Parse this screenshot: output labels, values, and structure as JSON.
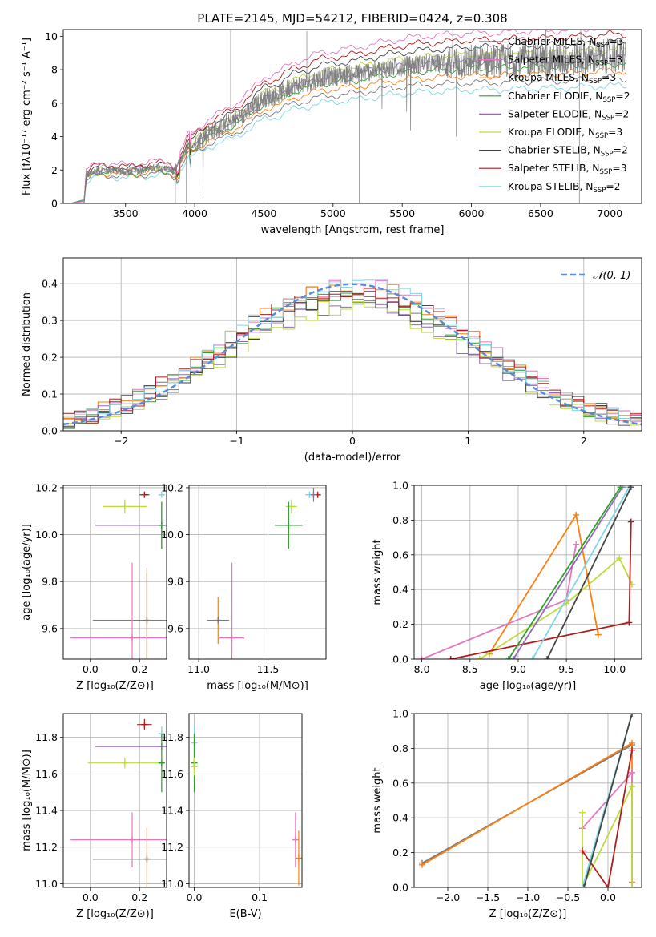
{
  "colors": {
    "grid": "#b0b0b0",
    "axis": "#000000",
    "legend_normal": "#5b8bd6"
  },
  "chart_data": [
    {
      "id": "spectrum",
      "type": "line",
      "title": "PLATE=2145, MJD=54212, FIBERID=0424, z=0.308",
      "xlabel": "wavelength [Angstrom, rest frame]",
      "ylabel": "Flux [fλ10⁻¹⁷ erg cm⁻² s⁻¹ A⁻¹]",
      "xlim": [
        3050,
        7230
      ],
      "ylim": [
        0,
        10.4
      ],
      "xticks": [
        3500,
        4000,
        4500,
        5000,
        5500,
        6000,
        6500,
        7000
      ],
      "yticks": [
        0,
        2,
        4,
        6,
        8,
        10
      ],
      "grid": false,
      "legend_placement": "upper right",
      "legend": [
        {
          "label": "Chabrier MILES, N",
          "sub": "SSP",
          "suffix": "=3",
          "color": "#7a7a7a"
        },
        {
          "label": "Salpeter MILES, N",
          "sub": "SSP",
          "suffix": "=3",
          "color": "#e377c2"
        },
        {
          "label": "Kroupa MILES, N",
          "sub": "SSP",
          "suffix": "=3",
          "color": "#ff7f0e"
        },
        {
          "label": "Chabrier ELODIE, N",
          "sub": "SSP",
          "suffix": "=2",
          "color": "#2ca02c"
        },
        {
          "label": "Salpeter ELODIE, N",
          "sub": "SSP",
          "suffix": "=2",
          "color": "#9467bd"
        },
        {
          "label": "Kroupa ELODIE, N",
          "sub": "SSP",
          "suffix": "=3",
          "color": "#bcdc3a"
        },
        {
          "label": "Chabrier STELIB, N",
          "sub": "SSP",
          "suffix": "=2",
          "color": "#444444"
        },
        {
          "label": "Salpeter STELIB, N",
          "sub": "SSP",
          "suffix": "=3",
          "color": "#b01c1c"
        },
        {
          "label": "Kroupa STELIB, N",
          "sub": "SSP",
          "suffix": "=2",
          "color": "#7fd6e6"
        }
      ],
      "continuum": {
        "x": [
          3200,
          3250,
          3300,
          3400,
          3500,
          3600,
          3700,
          3800,
          3850,
          3900,
          3950,
          4000,
          4100,
          4200,
          4300,
          4400,
          4500,
          4600,
          4700,
          4800,
          4900,
          5000,
          5200,
          5400,
          5600,
          5800,
          6000,
          6200,
          6400,
          6600,
          6800,
          7000,
          7100
        ],
        "y": [
          1.6,
          1.8,
          2.0,
          2.0,
          1.9,
          2.0,
          2.1,
          2.1,
          1.9,
          2.6,
          3.4,
          3.6,
          4.2,
          4.6,
          5.0,
          5.6,
          6.3,
          6.5,
          7.0,
          7.2,
          7.5,
          7.6,
          7.8,
          8.1,
          8.3,
          8.4,
          8.5,
          8.5,
          8.6,
          8.6,
          8.7,
          8.8,
          8.8
        ]
      }
    },
    {
      "id": "residuals",
      "type": "bar",
      "xlabel": "(data-model)/error",
      "ylabel": "Normed distribution",
      "xlim": [
        -2.5,
        2.5
      ],
      "ylim": [
        0,
        0.47
      ],
      "xticks": [
        -2,
        -1,
        0,
        1,
        2
      ],
      "yticks": [
        0.0,
        0.1,
        0.2,
        0.3,
        0.4
      ],
      "grid": true,
      "legend_placement": "upper right",
      "legend": [
        {
          "label": "𝒩(0, 1)",
          "color": "#5b8bd6",
          "dashed": true
        }
      ],
      "bin_width": 0.1
    },
    {
      "id": "age_vs_Z",
      "type": "scatter",
      "xlabel": "Z [log₁₀(Z/Z⊙)]",
      "ylabel": "age  [log₁₀(age/yr)]",
      "xlim": [
        -0.11,
        0.31
      ],
      "ylim": [
        9.47,
        10.21
      ],
      "xticks": [
        0.0,
        0.2
      ],
      "yticks": [
        9.6,
        9.8,
        10.0,
        10.2
      ],
      "grid": true,
      "points": [
        {
          "x": 0.22,
          "y": 10.17,
          "xerr": 0.02,
          "yerr": 0.0,
          "color": "#b01c1c"
        },
        {
          "x": 0.14,
          "y": 10.12,
          "xerr": 0.09,
          "yerr": 0.03,
          "color": "#bcdc3a"
        },
        {
          "x": 0.29,
          "y": 10.17,
          "xerr": 0.01,
          "yerr": 0.0,
          "color": "#7fd6e6"
        },
        {
          "x": 0.29,
          "y": 10.04,
          "xerr": 0.27,
          "yerr": 0.1,
          "color": "#9467bd"
        },
        {
          "x": 0.29,
          "y": 10.04,
          "xerr": 0.01,
          "yerr": 0.1,
          "color": "#2ca02c"
        },
        {
          "x": 0.23,
          "y": 9.635,
          "xerr": 0.22,
          "yerr": 0.225,
          "color": "#ff7f0e"
        },
        {
          "x": 0.23,
          "y": 9.635,
          "xerr": 0.22,
          "yerr": 0.2,
          "color": "#7a7a7a"
        },
        {
          "x": 0.17,
          "y": 9.56,
          "xerr": 0.25,
          "yerr": 0.32,
          "color": "#e377c2"
        }
      ]
    },
    {
      "id": "age_vs_mass",
      "type": "scatter",
      "xlabel": "mass [log₁₀(M/M⊙)]",
      "ylabel": "",
      "xlim": [
        10.93,
        11.92
      ],
      "ylim": [
        9.47,
        10.21
      ],
      "xticks": [
        11.0,
        11.5
      ],
      "yticks": [
        9.6,
        9.8,
        10.0,
        10.2
      ],
      "grid": true,
      "points": [
        {
          "x": 11.86,
          "y": 10.17,
          "xerr": 0.02,
          "yerr": 0.0,
          "color": "#b01c1c"
        },
        {
          "x": 11.67,
          "y": 10.12,
          "xerr": 0.04,
          "yerr": 0.03,
          "color": "#bcdc3a"
        },
        {
          "x": 11.8,
          "y": 10.17,
          "xerr": 0.03,
          "yerr": 0.0,
          "color": "#7fd6e6"
        },
        {
          "x": 11.83,
          "y": 10.17,
          "xerr": 0.01,
          "yerr": 0.03,
          "color": "#9467bd"
        },
        {
          "x": 11.65,
          "y": 10.04,
          "xerr": 0.1,
          "yerr": 0.1,
          "color": "#2ca02c"
        },
        {
          "x": 11.14,
          "y": 9.635,
          "xerr": 0.06,
          "yerr": 0.1,
          "color": "#ff7f0e"
        },
        {
          "x": 11.14,
          "y": 9.635,
          "xerr": 0.08,
          "yerr": 0.0,
          "color": "#7a7a7a"
        },
        {
          "x": 11.24,
          "y": 9.56,
          "xerr": 0.09,
          "yerr": 0.32,
          "color": "#e377c2"
        }
      ]
    },
    {
      "id": "weight_vs_age",
      "type": "line",
      "xlabel": "age  [log₁₀(age/yr)]",
      "ylabel": "mass weight",
      "xlim": [
        7.92,
        10.28
      ],
      "ylim": [
        0,
        1
      ],
      "xticks": [
        8.0,
        8.5,
        9.0,
        9.5,
        10.0
      ],
      "yticks": [
        0.0,
        0.2,
        0.4,
        0.6,
        0.8,
        1.0
      ],
      "grid": true,
      "series": [
        {
          "color": "#ff7f0e",
          "x": [
            8.7,
            9.6,
            9.83
          ],
          "y": [
            0.03,
            0.83,
            0.14
          ]
        },
        {
          "color": "#e377c2",
          "x": [
            8.0,
            9.5,
            9.6
          ],
          "y": [
            0.0,
            0.34,
            0.66
          ]
        },
        {
          "color": "#bcdc3a",
          "x": [
            8.6,
            9.5,
            10.05,
            10.18
          ],
          "y": [
            0.0,
            0.32,
            0.58,
            0.43
          ]
        },
        {
          "color": "#b01c1c",
          "x": [
            8.3,
            10.15,
            10.17
          ],
          "y": [
            0.0,
            0.21,
            0.79
          ]
        },
        {
          "color": "#9467bd",
          "x": [
            8.95,
            10.08
          ],
          "y": [
            0.0,
            0.99
          ]
        },
        {
          "color": "#2ca02c",
          "x": [
            8.9,
            10.06
          ],
          "y": [
            0.0,
            0.99
          ]
        },
        {
          "color": "#7fd6e6",
          "x": [
            9.15,
            10.15
          ],
          "y": [
            0.0,
            0.99
          ]
        },
        {
          "color": "#444444",
          "x": [
            9.3,
            10.17
          ],
          "y": [
            0.0,
            0.99
          ]
        }
      ]
    },
    {
      "id": "mass_vs_Z",
      "type": "scatter",
      "xlabel": "Z [log₁₀(Z/Z⊙)]",
      "ylabel": "mass [log₁₀(M/M⊙)]",
      "xlim": [
        -0.11,
        0.31
      ],
      "ylim": [
        10.98,
        11.93
      ],
      "xticks": [
        0.0,
        0.2
      ],
      "yticks": [
        11.0,
        11.2,
        11.4,
        11.6,
        11.8
      ],
      "grid": true,
      "points": [
        {
          "x": 0.22,
          "y": 11.87,
          "xerr": 0.03,
          "yerr": 0.03,
          "color": "#b01c1c"
        },
        {
          "x": 0.29,
          "y": 11.82,
          "xerr": 0.01,
          "yerr": 0.04,
          "color": "#7fd6e6"
        },
        {
          "x": 0.29,
          "y": 11.75,
          "xerr": 0.27,
          "yerr": 0.0,
          "color": "#9467bd"
        },
        {
          "x": 0.14,
          "y": 11.66,
          "xerr": 0.15,
          "yerr": 0.03,
          "color": "#bcdc3a"
        },
        {
          "x": 0.29,
          "y": 11.66,
          "xerr": 0.01,
          "yerr": 0.16,
          "color": "#2ca02c"
        },
        {
          "x": 0.17,
          "y": 11.24,
          "xerr": 0.25,
          "yerr": 0.15,
          "color": "#e377c2"
        },
        {
          "x": 0.23,
          "y": 11.135,
          "xerr": 0.22,
          "yerr": 0.17,
          "color": "#ff7f0e"
        },
        {
          "x": 0.23,
          "y": 11.135,
          "xerr": 0.22,
          "yerr": 0.0,
          "color": "#7a7a7a"
        }
      ]
    },
    {
      "id": "mass_vs_ebv",
      "type": "scatter",
      "xlabel": "E(B-V)",
      "ylabel": "",
      "xlim": [
        -0.008,
        0.165
      ],
      "ylim": [
        10.98,
        11.93
      ],
      "xticks": [
        0.0,
        0.1
      ],
      "yticks": [
        11.0,
        11.2,
        11.4,
        11.6,
        11.8
      ],
      "grid": true,
      "points": [
        {
          "x": 0.0,
          "y": 11.77,
          "xerr": 0.0,
          "yerr": 0.1,
          "color": "#7fd6e6"
        },
        {
          "x": 0.0,
          "y": 11.66,
          "xerr": 0.0,
          "yerr": 0.16,
          "color": "#2ca02c"
        },
        {
          "x": 0.0,
          "y": 11.64,
          "xerr": 0.0,
          "yerr": 0.05,
          "color": "#bcdc3a"
        },
        {
          "x": 0.155,
          "y": 11.24,
          "xerr": 0.0,
          "yerr": 0.15,
          "color": "#e377c2"
        },
        {
          "x": 0.16,
          "y": 11.14,
          "xerr": 0.0,
          "yerr": 0.15,
          "color": "#ff7f0e"
        }
      ]
    },
    {
      "id": "weight_vs_Z",
      "type": "line",
      "xlabel": "Z [log₁₀(Z/Z⊙)]",
      "ylabel": "mass weight",
      "xlim": [
        -2.42,
        0.42
      ],
      "ylim": [
        0,
        1
      ],
      "xticks": [
        -2.0,
        -1.5,
        -1.0,
        -0.5,
        0.0
      ],
      "yticks": [
        0.0,
        0.2,
        0.4,
        0.6,
        0.8,
        1.0
      ],
      "grid": true,
      "series": [
        {
          "color": "#7a7a7a",
          "x": [
            -2.32,
            0.3
          ],
          "y": [
            0.14,
            0.82
          ]
        },
        {
          "color": "#ff7f0e",
          "x": [
            -2.32,
            0.3,
            0.3
          ],
          "y": [
            0.13,
            0.83,
            0.03
          ]
        },
        {
          "color": "#e377c2",
          "x": [
            -0.32,
            0.3,
            0.3
          ],
          "y": [
            0.34,
            0.66,
            0.0
          ]
        },
        {
          "color": "#bcdc3a",
          "x": [
            -0.32,
            -0.32,
            0.3,
            0.3
          ],
          "y": [
            0.43,
            0.0,
            0.58,
            0.0
          ]
        },
        {
          "color": "#b01c1c",
          "x": [
            -0.32,
            0.0,
            0.3
          ],
          "y": [
            0.21,
            0.0,
            0.79
          ]
        },
        {
          "color": "#7fd6e6",
          "x": [
            -0.32,
            0.3
          ],
          "y": [
            0.0,
            1.0
          ]
        },
        {
          "color": "#444444",
          "x": [
            -0.3,
            0.3
          ],
          "y": [
            0.0,
            1.0
          ]
        }
      ]
    }
  ]
}
